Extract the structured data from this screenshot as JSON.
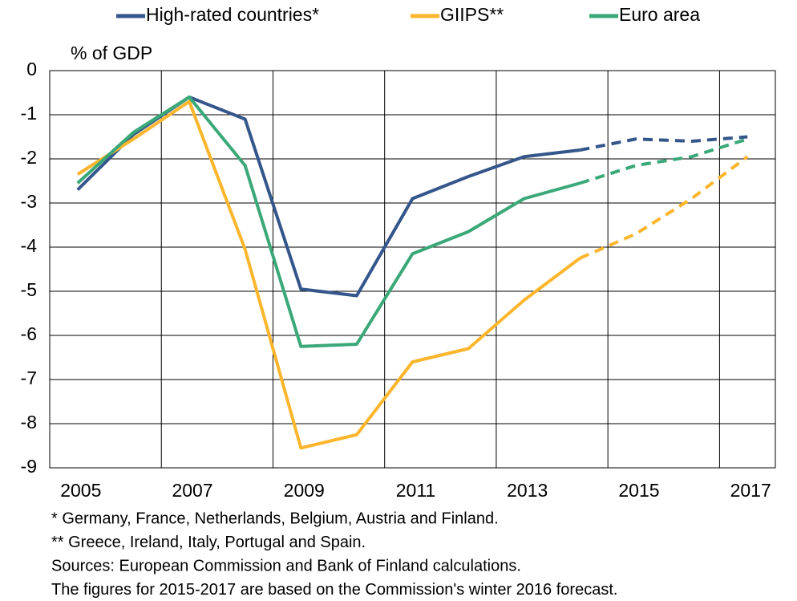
{
  "chart_data": {
    "type": "line",
    "y_label": "% of GDP",
    "categories": [
      "2005",
      null,
      "2007",
      null,
      "2009",
      null,
      "2011",
      null,
      "2013",
      null,
      "2015",
      null,
      "2017"
    ],
    "series": [
      {
        "name": "High-rated countries*",
        "color": "#34568b",
        "values": [
          -2.7,
          -1.45,
          -0.6,
          -1.1,
          -4.95,
          -5.1,
          -2.9,
          -2.4,
          -1.95,
          -1.8,
          -1.55,
          -1.6,
          -1.5
        ]
      },
      {
        "name": "GIIPS**",
        "color": "#fbb62d",
        "values": [
          -2.35,
          -1.55,
          -0.7,
          -4.05,
          -8.55,
          -8.25,
          -6.6,
          -6.3,
          -5.2,
          -4.25,
          -3.7,
          -2.9,
          -1.95
        ]
      },
      {
        "name": "Euro area",
        "color": "#3aa878",
        "values": [
          -2.55,
          -1.4,
          -0.6,
          -2.15,
          -6.25,
          -6.2,
          -4.15,
          -3.65,
          -2.9,
          -2.55,
          -2.15,
          -1.95,
          -1.55
        ]
      }
    ],
    "dashed_from_index": 9,
    "ylim": [
      -9,
      0
    ],
    "yticks": [
      0,
      -1,
      -2,
      -3,
      -4,
      -5,
      -6,
      -7,
      -8,
      -9
    ],
    "grid": true,
    "legend": "top",
    "notes": [
      "* Germany, France, Netherlands, Belgium, Austria and Finland.",
      "** Greece, Ireland, Italy, Portugal and Spain.",
      "Sources: European Commission and Bank of Finland calculations.",
      "The figures for 2015-2017 are based on the Commission's winter 2016 forecast."
    ]
  }
}
